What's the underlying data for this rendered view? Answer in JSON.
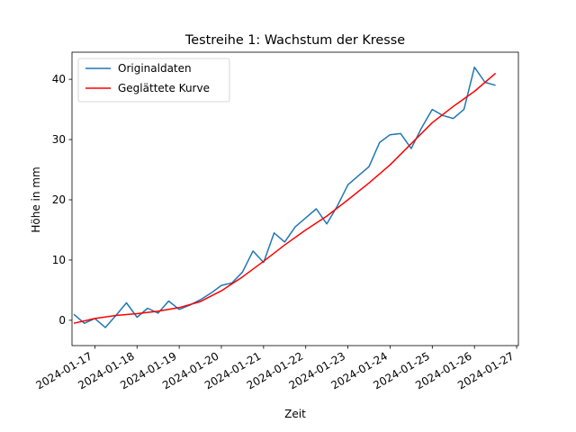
{
  "chart_data": {
    "type": "line",
    "title": "Testreihe 1: Wachstum der Kresse",
    "xlabel": "Zeit",
    "ylabel": "Höhe in mm",
    "x_ticks": [
      "2024-01-17",
      "2024-01-18",
      "2024-01-19",
      "2024-01-20",
      "2024-01-21",
      "2024-01-22",
      "2024-01-23",
      "2024-01-24",
      "2024-01-25",
      "2024-01-26",
      "2024-01-27"
    ],
    "xlim": [
      "2024-01-16T11:00",
      "2024-01-27T01:00"
    ],
    "y_ticks": [
      0,
      10,
      20,
      30,
      40
    ],
    "ylim": [
      -4.2,
      44.5
    ],
    "grid": false,
    "legend_position": "top-left",
    "series": [
      {
        "name": "Originaldaten",
        "color": "#1f77b4",
        "x": [
          "2024-01-16T12:00",
          "2024-01-16T18:00",
          "2024-01-17T00:00",
          "2024-01-17T06:00",
          "2024-01-17T12:00",
          "2024-01-17T18:00",
          "2024-01-18T00:00",
          "2024-01-18T06:00",
          "2024-01-18T12:00",
          "2024-01-18T18:00",
          "2024-01-19T00:00",
          "2024-01-19T06:00",
          "2024-01-19T12:00",
          "2024-01-19T18:00",
          "2024-01-20T00:00",
          "2024-01-20T06:00",
          "2024-01-20T12:00",
          "2024-01-20T18:00",
          "2024-01-21T00:00",
          "2024-01-21T06:00",
          "2024-01-21T12:00",
          "2024-01-21T18:00",
          "2024-01-22T00:00",
          "2024-01-22T06:00",
          "2024-01-22T12:00",
          "2024-01-22T18:00",
          "2024-01-23T00:00",
          "2024-01-23T06:00",
          "2024-01-23T12:00",
          "2024-01-23T18:00",
          "2024-01-24T00:00",
          "2024-01-24T06:00",
          "2024-01-24T12:00",
          "2024-01-24T18:00",
          "2024-01-25T00:00",
          "2024-01-25T06:00",
          "2024-01-25T12:00",
          "2024-01-25T18:00",
          "2024-01-26T00:00",
          "2024-01-26T06:00",
          "2024-01-26T12:00"
        ],
        "values": [
          1.0,
          -0.5,
          0.3,
          -1.2,
          0.8,
          2.9,
          0.5,
          2.0,
          1.2,
          3.2,
          1.8,
          2.5,
          3.4,
          4.5,
          5.8,
          6.2,
          8.0,
          11.5,
          9.6,
          14.5,
          13.0,
          15.5,
          17.0,
          18.5,
          16.0,
          19.0,
          22.5,
          24.0,
          25.5,
          29.5,
          30.8,
          31.0,
          28.5,
          32.0,
          35.0,
          34.0,
          33.5,
          35.0,
          42.0,
          39.5,
          39.0
        ]
      },
      {
        "name": "Geglättete Kurve",
        "color": "#ff0000",
        "x": [
          "2024-01-16T12:00",
          "2024-01-17T00:00",
          "2024-01-17T12:00",
          "2024-01-18T00:00",
          "2024-01-18T12:00",
          "2024-01-19T00:00",
          "2024-01-19T12:00",
          "2024-01-20T00:00",
          "2024-01-20T12:00",
          "2024-01-21T00:00",
          "2024-01-21T12:00",
          "2024-01-22T00:00",
          "2024-01-22T12:00",
          "2024-01-23T00:00",
          "2024-01-23T12:00",
          "2024-01-24T00:00",
          "2024-01-24T12:00",
          "2024-01-25T00:00",
          "2024-01-25T12:00",
          "2024-01-26T00:00",
          "2024-01-26T12:00"
        ],
        "values": [
          -0.5,
          0.3,
          0.8,
          1.1,
          1.5,
          2.1,
          3.1,
          4.9,
          7.2,
          9.8,
          12.5,
          15.0,
          17.3,
          20.0,
          22.8,
          25.8,
          29.3,
          32.8,
          35.5,
          38.0,
          41.0
        ]
      }
    ]
  }
}
